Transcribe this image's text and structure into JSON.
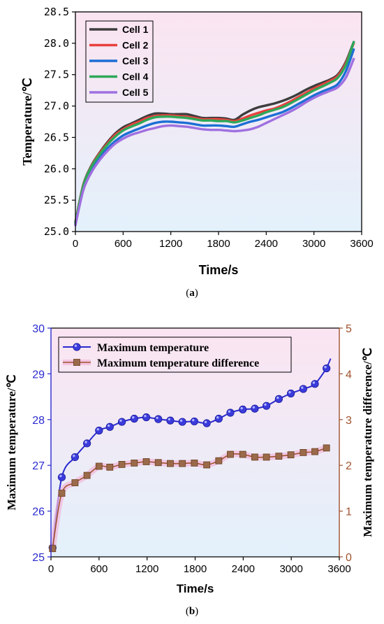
{
  "captions": {
    "a": "a",
    "b": "b"
  },
  "chart_data": [
    {
      "type": "line",
      "panel": "a",
      "title": "",
      "xlabel": "Time/s",
      "ylabel": "Temperature/℃",
      "xlim": [
        0,
        3600
      ],
      "ylim": [
        25.0,
        28.5
      ],
      "xticks": [
        "0",
        "600",
        "1200",
        "1800",
        "2400",
        "3000",
        "3600"
      ],
      "yticks": [
        "25.0",
        "25.5",
        "26.0",
        "26.5",
        "27.0",
        "27.5",
        "28.0",
        "28.5"
      ],
      "legend_position": "top-left",
      "background": [
        "#fbe4f1",
        "#e3f1fb"
      ],
      "series": [
        {
          "name": "Cell 1",
          "color": "#3d3d3d",
          "x": [
            0,
            100,
            200,
            300,
            400,
            500,
            600,
            700,
            800,
            900,
            1000,
            1100,
            1200,
            1300,
            1400,
            1500,
            1600,
            1700,
            1800,
            1900,
            2000,
            2100,
            2200,
            2300,
            2400,
            2500,
            2600,
            2700,
            2800,
            2900,
            3000,
            3100,
            3200,
            3300,
            3400,
            3500
          ],
          "values": [
            25.15,
            25.75,
            26.05,
            26.25,
            26.42,
            26.56,
            26.66,
            26.72,
            26.78,
            26.84,
            26.88,
            26.88,
            26.87,
            26.87,
            26.87,
            26.84,
            26.81,
            26.81,
            26.81,
            26.8,
            26.78,
            26.86,
            26.93,
            26.98,
            27.01,
            27.04,
            27.08,
            27.13,
            27.19,
            27.26,
            27.32,
            27.37,
            27.42,
            27.5,
            27.7,
            28.02
          ]
        },
        {
          "name": "Cell 2",
          "color": "#e8413d",
          "x": [
            0,
            100,
            200,
            300,
            400,
            500,
            600,
            700,
            800,
            900,
            1000,
            1100,
            1200,
            1300,
            1400,
            1500,
            1600,
            1700,
            1800,
            1900,
            2000,
            2100,
            2200,
            2300,
            2400,
            2500,
            2600,
            2700,
            2800,
            2900,
            3000,
            3100,
            3200,
            3300,
            3400,
            3500
          ],
          "values": [
            25.15,
            25.74,
            26.04,
            26.24,
            26.4,
            26.54,
            26.63,
            26.7,
            26.75,
            26.81,
            26.84,
            26.85,
            26.85,
            26.84,
            26.83,
            26.81,
            26.79,
            26.79,
            26.79,
            26.78,
            26.76,
            26.8,
            26.85,
            26.89,
            26.93,
            26.96,
            27.01,
            27.07,
            27.14,
            27.21,
            27.28,
            27.34,
            27.4,
            27.48,
            27.68,
            28.0
          ]
        },
        {
          "name": "Cell 3",
          "color": "#1c6fd4",
          "x": [
            0,
            100,
            200,
            300,
            400,
            500,
            600,
            700,
            800,
            900,
            1000,
            1100,
            1200,
            1300,
            1400,
            1500,
            1600,
            1700,
            1800,
            1900,
            2000,
            2100,
            2200,
            2300,
            2400,
            2500,
            2600,
            2700,
            2800,
            2900,
            3000,
            3100,
            3200,
            3300,
            3400,
            3500
          ],
          "values": [
            25.12,
            25.7,
            25.98,
            26.17,
            26.32,
            26.44,
            26.53,
            26.59,
            26.64,
            26.69,
            26.73,
            26.75,
            26.75,
            26.74,
            26.73,
            26.71,
            26.69,
            26.69,
            26.69,
            26.68,
            26.67,
            26.71,
            26.75,
            26.78,
            26.82,
            26.86,
            26.9,
            26.96,
            27.03,
            27.1,
            27.17,
            27.23,
            27.28,
            27.35,
            27.55,
            27.9
          ]
        },
        {
          "name": "Cell 4",
          "color": "#2ea85a",
          "x": [
            0,
            100,
            200,
            300,
            400,
            500,
            600,
            700,
            800,
            900,
            1000,
            1100,
            1200,
            1300,
            1400,
            1500,
            1600,
            1700,
            1800,
            1900,
            2000,
            2100,
            2200,
            2300,
            2400,
            2500,
            2600,
            2700,
            2800,
            2900,
            3000,
            3100,
            3200,
            3300,
            3400,
            3500
          ],
          "values": [
            25.14,
            25.73,
            26.03,
            26.22,
            26.38,
            26.51,
            26.61,
            26.67,
            26.72,
            26.78,
            26.82,
            26.83,
            26.83,
            26.82,
            26.81,
            26.79,
            26.77,
            26.77,
            26.76,
            26.76,
            26.74,
            26.77,
            26.81,
            26.85,
            26.9,
            26.94,
            26.98,
            27.04,
            27.11,
            27.18,
            27.25,
            27.31,
            27.37,
            27.45,
            27.65,
            28.02
          ]
        },
        {
          "name": "Cell 5",
          "color": "#a070e0",
          "x": [
            0,
            100,
            200,
            300,
            400,
            500,
            600,
            700,
            800,
            900,
            1000,
            1100,
            1200,
            1300,
            1400,
            1500,
            1600,
            1700,
            1800,
            1900,
            2000,
            2100,
            2200,
            2300,
            2400,
            2500,
            2600,
            2700,
            2800,
            2900,
            3000,
            3100,
            3200,
            3300,
            3400,
            3500
          ],
          "values": [
            25.1,
            25.66,
            25.94,
            26.13,
            26.28,
            26.4,
            26.48,
            26.54,
            26.58,
            26.62,
            26.65,
            26.68,
            26.69,
            26.68,
            26.67,
            26.65,
            26.63,
            26.62,
            26.62,
            26.61,
            26.6,
            26.61,
            26.63,
            26.67,
            26.73,
            26.79,
            26.85,
            26.91,
            26.98,
            27.06,
            27.13,
            27.19,
            27.24,
            27.3,
            27.45,
            27.75
          ]
        }
      ]
    },
    {
      "type": "line",
      "panel": "b",
      "title": "",
      "xlabel": "Time/s",
      "ylabel": "Maximum temperature/℃",
      "y2label": "Maximum temperature difference/℃",
      "xlim": [
        0,
        3600
      ],
      "ylim": [
        25,
        30
      ],
      "y2lim": [
        0,
        5
      ],
      "xticks": [
        "0",
        "600",
        "1200",
        "1800",
        "2400",
        "3000",
        "3600"
      ],
      "yticks": [
        "25",
        "26",
        "27",
        "28",
        "29",
        "30"
      ],
      "y2ticks": [
        "0",
        "1",
        "2",
        "3",
        "4",
        "5"
      ],
      "legend_position": "top-left",
      "background": [
        "#fbe4f1",
        "#e3f1fb"
      ],
      "left_axis_color": "#2a2acf",
      "right_axis_color": "#a0522d",
      "series": [
        {
          "name": "Maximum temperature",
          "axis": "left",
          "color": "#2a2acf",
          "marker": "circle",
          "x": [
            20,
            135,
            300,
            450,
            600,
            735,
            885,
            1040,
            1190,
            1340,
            1490,
            1640,
            1790,
            1945,
            2095,
            2240,
            2395,
            2545,
            2690,
            2845,
            2995,
            3150,
            3295,
            3440
          ],
          "values": [
            25.2,
            26.74,
            27.18,
            27.48,
            27.76,
            27.84,
            27.95,
            28.02,
            28.05,
            28.01,
            27.98,
            27.95,
            27.96,
            27.92,
            28.02,
            28.15,
            28.22,
            28.24,
            28.3,
            28.45,
            28.57,
            28.67,
            28.78,
            29.12
          ]
        },
        {
          "name": "Maximum temperature difference",
          "axis": "right",
          "color": "#a0522d",
          "marker": "square",
          "x": [
            20,
            135,
            300,
            450,
            600,
            735,
            885,
            1040,
            1190,
            1340,
            1490,
            1640,
            1790,
            1945,
            2095,
            2240,
            2395,
            2545,
            2690,
            2845,
            2995,
            3150,
            3295,
            3440
          ],
          "values": [
            0.18,
            1.39,
            1.62,
            1.78,
            1.98,
            1.96,
            2.02,
            2.05,
            2.08,
            2.06,
            2.04,
            2.04,
            2.05,
            2.01,
            2.1,
            2.24,
            2.24,
            2.18,
            2.18,
            2.2,
            2.23,
            2.28,
            2.3,
            2.38
          ]
        }
      ]
    }
  ]
}
